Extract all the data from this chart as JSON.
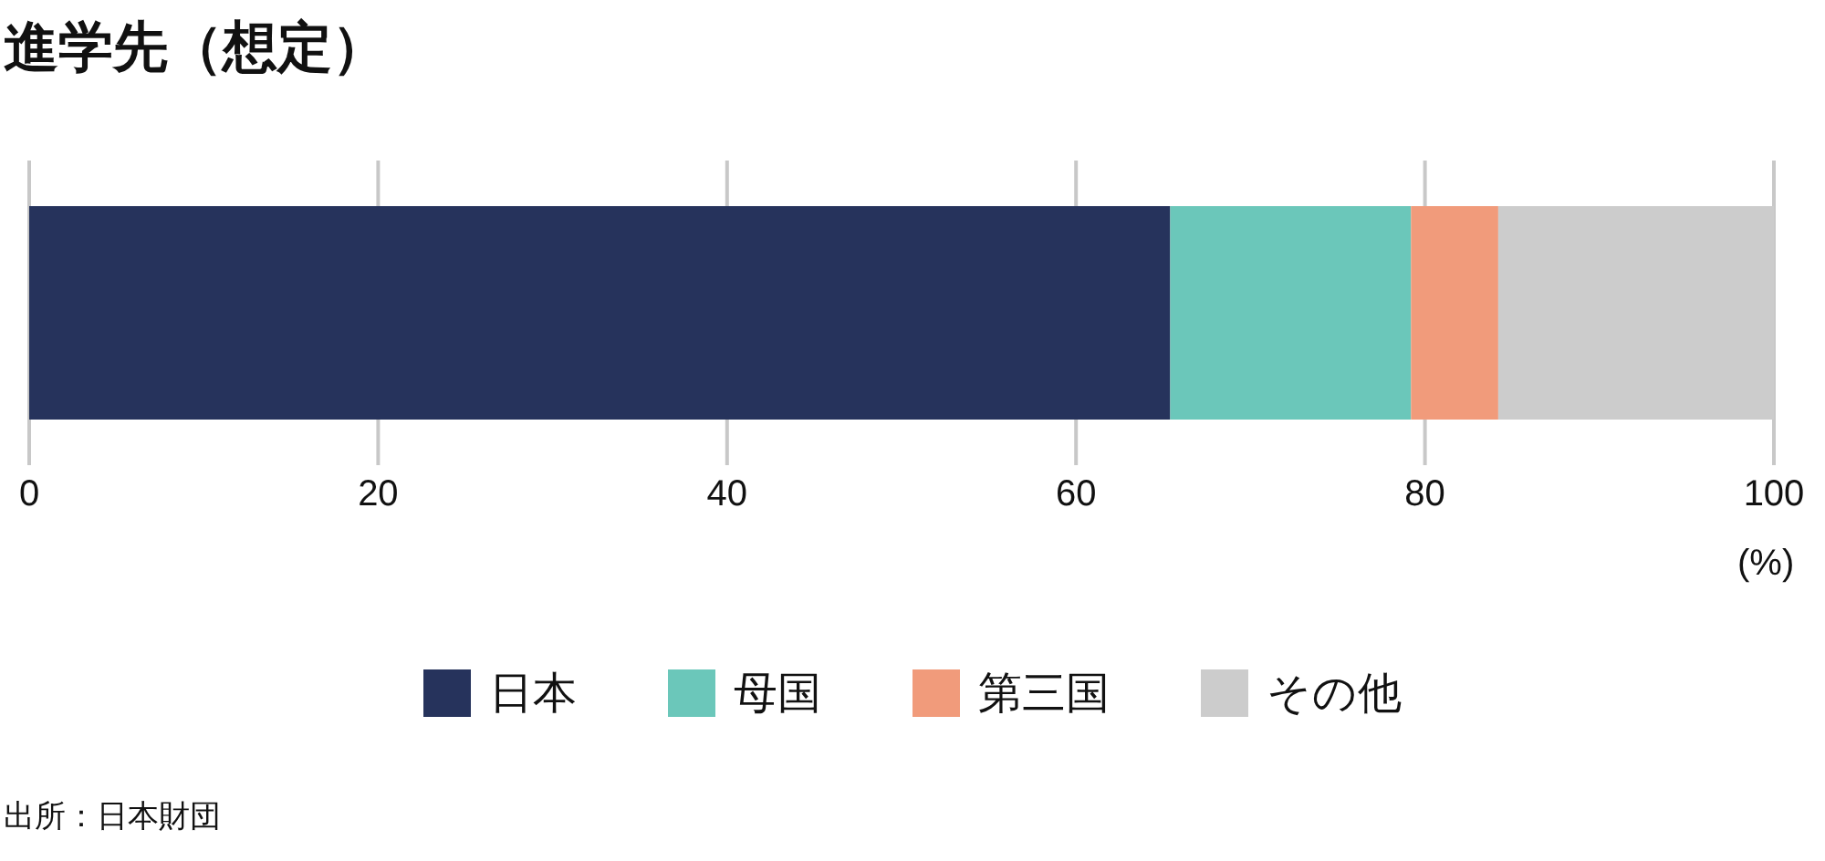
{
  "chart_data": {
    "type": "bar",
    "orientation": "horizontal",
    "stacked": true,
    "title": "進学先（想定）",
    "xlabel": "(%)",
    "categories": [
      null
    ],
    "series": [
      {
        "name": "日本",
        "color": "#26335c",
        "values": [
          65.4
        ]
      },
      {
        "name": "母国",
        "color": "#6bc7ba",
        "values": [
          13.8
        ]
      },
      {
        "name": "第三国",
        "color": "#f19b7b",
        "values": [
          5.0
        ]
      },
      {
        "name": "その他",
        "color": "#cccccc",
        "values": [
          15.8
        ]
      }
    ],
    "xlim": [
      0,
      100
    ],
    "xticks": [
      0,
      20,
      40,
      60,
      80,
      100
    ],
    "grid": "x",
    "legend": "bottom",
    "annotations": [
      "出所：日本財団"
    ]
  }
}
